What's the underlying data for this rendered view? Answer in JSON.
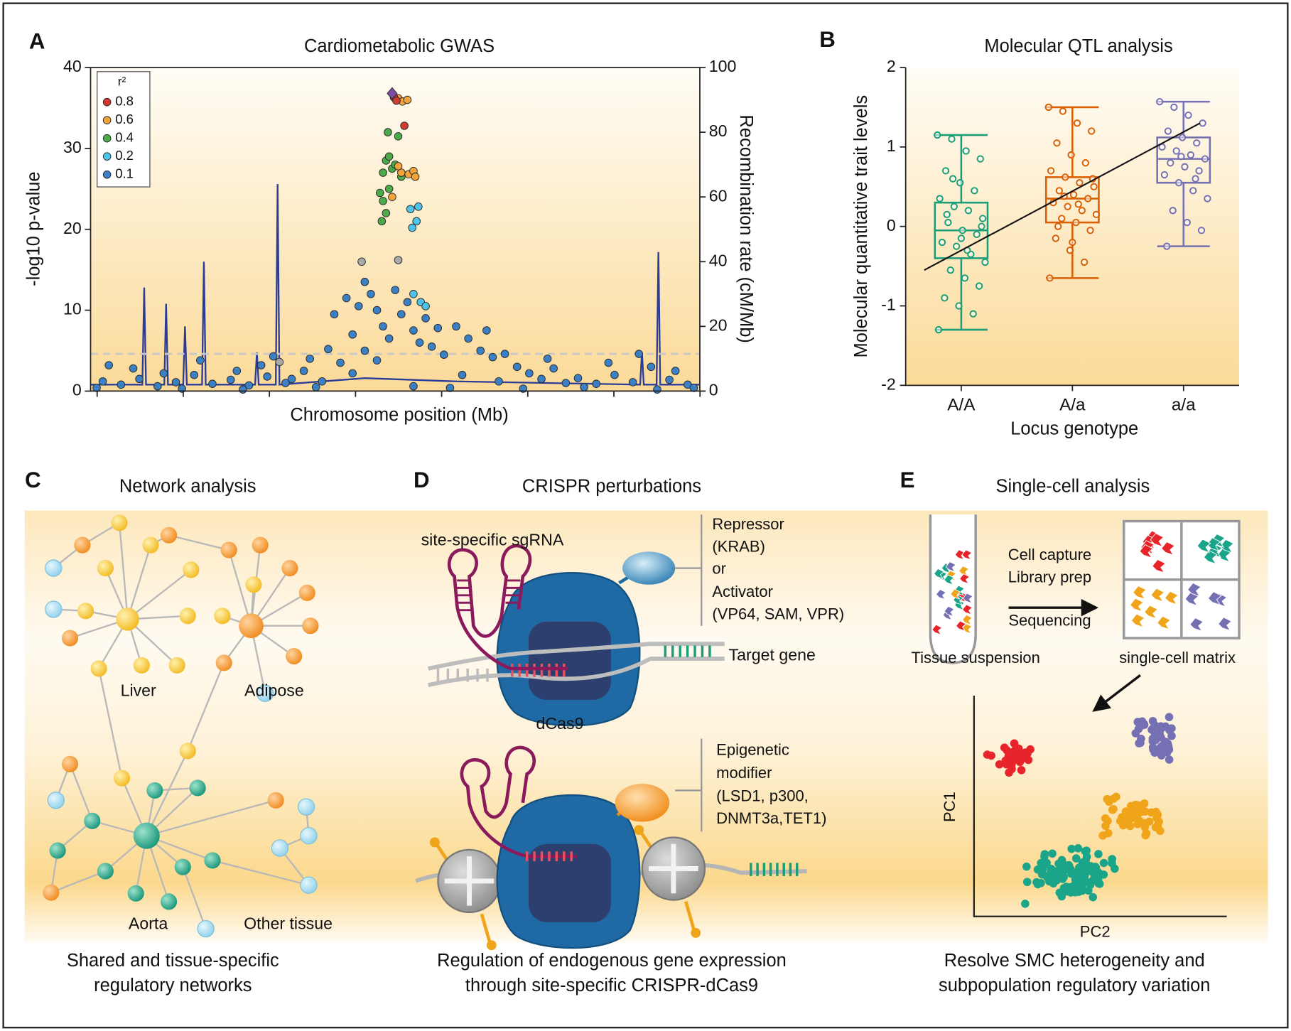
{
  "chart_data": [
    {
      "type": "scatter",
      "panel_label": "A",
      "title": "Cardiometabolic GWAS",
      "x_label": "Chromosome position (Mb)",
      "y_label": "-log10 p-value",
      "y2_label": "Recombination rate (cM/Mb)",
      "xlim": [
        0,
        100
      ],
      "ylim": [
        0,
        40
      ],
      "yticks": [
        0,
        10,
        20,
        30,
        40
      ],
      "y2lim": [
        0,
        100
      ],
      "y2ticks": [
        0,
        20,
        40,
        60,
        80,
        100
      ],
      "threshold": 4.6,
      "legend": "upper left",
      "legend_title": "r²",
      "series": [
        {
          "type": "line",
          "axis": "y2",
          "color": "#2b3c96",
          "x": [
            0,
            8.5,
            8.8,
            9.1,
            12.1,
            12.4,
            12.7,
            15.2,
            15.5,
            15.8,
            18.3,
            18.6,
            18.9,
            27,
            27.3,
            27.6,
            30.4,
            30.7,
            31,
            45,
            60,
            90.2,
            90.5,
            90.8,
            92.9,
            93.2,
            93.5,
            100
          ],
          "values": [
            2,
            2,
            32,
            2,
            2,
            27,
            2,
            2,
            20,
            2,
            2,
            40,
            2,
            2,
            12,
            2,
            2,
            64,
            2,
            4,
            3,
            2,
            12,
            2,
            2,
            43,
            2,
            2
          ]
        },
        {
          "name": "0.1",
          "color": "#3b7fc4",
          "x": [
            2,
            5,
            8,
            11,
            14,
            17,
            20,
            23,
            26,
            29,
            32,
            35,
            38,
            41,
            43,
            45,
            47,
            48,
            49,
            50,
            51,
            52,
            53,
            54,
            55,
            56,
            57,
            58,
            60,
            62,
            64,
            66,
            68,
            70,
            72,
            74,
            76,
            78,
            80,
            83,
            86,
            89,
            92,
            95,
            98,
            40,
            42,
            44,
            46,
            47,
            45,
            43,
            39,
            36,
            33,
            30,
            28,
            24,
            18,
            12,
            7,
            3,
            61,
            65,
            67,
            75,
            85,
            90,
            96,
            1,
            15,
            25,
            37,
            53,
            59,
            71,
            81,
            93,
            99
          ],
          "values": [
            1.2,
            0.8,
            1.5,
            0.6,
            1.1,
            2.0,
            0.9,
            1.4,
            0.7,
            1.8,
            1.0,
            2.5,
            1.2,
            3.5,
            2.2,
            5.0,
            3.8,
            8.0,
            6.5,
            12.5,
            9.5,
            11.0,
            7.5,
            6.0,
            9.0,
            5.5,
            7.8,
            4.5,
            8.0,
            6.5,
            5.0,
            4.2,
            4.6,
            3.0,
            2.2,
            1.5,
            2.8,
            1.0,
            1.6,
            0.9,
            2.0,
            1.1,
            3.0,
            1.4,
            0.8,
            9.5,
            11.5,
            10.5,
            12.0,
            10.0,
            13.5,
            7.0,
            5.2,
            4.0,
            1.5,
            4.3,
            3.2,
            2.5,
            3.8,
            2.2,
            2.8,
            3.2,
            2.0,
            7.5,
            1.2,
            4.0,
            3.5,
            4.6,
            2.5,
            0.4,
            0.3,
            0.2,
            0.5,
            0.6,
            0.4,
            0.3,
            0.5,
            0.2,
            0.4
          ]
        },
        {
          "name": "0.2",
          "color": "#4fc3ea",
          "x": [
            52.5,
            53.5,
            52.8,
            53.8,
            54.2,
            55,
            53
          ],
          "values": [
            22.5,
            21,
            20.2,
            22.8,
            11,
            10.5,
            12
          ]
        },
        {
          "name": "0.4",
          "color": "#4caa4a",
          "x": [
            48.5,
            49,
            49.5,
            48,
            47.5,
            48,
            47.8,
            48.5,
            50,
            49,
            51,
            50.5,
            48.8
          ],
          "values": [
            28.5,
            29,
            27.5,
            27,
            24.5,
            23.5,
            21,
            22,
            28,
            25,
            26.5,
            31.5,
            32
          ]
        },
        {
          "name": "0.6",
          "color": "#f2a33a",
          "x": [
            50.5,
            51.2,
            52,
            51,
            52.2,
            53,
            49.5,
            50.5,
            53.3
          ],
          "values": [
            36.2,
            35.8,
            36,
            27,
            26.8,
            27.2,
            24,
            27.8,
            26.5
          ]
        },
        {
          "name": "0.8",
          "color": "#d13a2f",
          "x": [
            49.8,
            50.2,
            51.5
          ],
          "values": [
            36.3,
            35.9,
            32.8
          ]
        },
        {
          "color": "#a9a9a9",
          "x": [
            44.5,
            50.5,
            31
          ],
          "values": [
            16,
            16.2,
            3.6
          ]
        },
        {
          "color": "#7b4ea3",
          "marker": "diamond",
          "x": [
            49.5
          ],
          "values": [
            36.8
          ]
        }
      ]
    },
    {
      "type": "box",
      "panel_label": "B",
      "title": "Molecular QTL analysis",
      "x_label": "Locus genotype",
      "y_label": "Molecular quantitative trait levels",
      "categories": [
        "A/A",
        "A/a",
        "a/a"
      ],
      "ylim": [
        -2,
        2
      ],
      "yticks": [
        -2,
        -1,
        0,
        1,
        2
      ],
      "trend": [
        -0.55,
        1.3
      ],
      "boxes": [
        {
          "color": "#1a9e77",
          "min": -1.3,
          "q1": -0.4,
          "median": -0.05,
          "q3": 0.3,
          "max": 1.15,
          "points": [
            1.15,
            1.1,
            0.95,
            0.85,
            0.7,
            0.55,
            0.45,
            0.35,
            0.25,
            0.2,
            0.1,
            0.05,
            -0.05,
            -0.1,
            -0.2,
            -0.25,
            -0.35,
            -0.45,
            -0.55,
            -0.65,
            -0.75,
            -0.9,
            -1.0,
            -1.1,
            -1.3,
            0.6,
            -0.3,
            0.0,
            0.15,
            -0.15
          ]
        },
        {
          "color": "#d95f02",
          "min": -0.65,
          "q1": 0.05,
          "median": 0.35,
          "q3": 0.62,
          "max": 1.5,
          "points": [
            1.5,
            1.45,
            1.3,
            1.2,
            1.05,
            0.9,
            0.8,
            0.7,
            0.62,
            0.55,
            0.5,
            0.45,
            0.4,
            0.35,
            0.3,
            0.25,
            0.2,
            0.15,
            0.1,
            0.05,
            -0.05,
            -0.15,
            -0.3,
            -0.45,
            -0.65,
            0.38,
            0.28,
            0.6,
            0.0,
            -0.2
          ]
        },
        {
          "color": "#7570b3",
          "min": -0.25,
          "q1": 0.55,
          "median": 0.85,
          "q3": 1.12,
          "max": 1.57,
          "points": [
            1.57,
            1.5,
            1.4,
            1.3,
            1.2,
            1.12,
            1.05,
            1.0,
            0.95,
            0.9,
            0.85,
            0.8,
            0.75,
            0.7,
            0.65,
            0.55,
            0.45,
            0.35,
            0.2,
            0.05,
            -0.05,
            -0.25,
            0.88,
            0.6
          ]
        }
      ]
    }
  ],
  "network": {
    "panel_label": "C",
    "title": "Network analysis",
    "labels": [
      "Liver",
      "Adipose",
      "Aorta",
      "Other tissue"
    ],
    "caption": [
      "Shared and tissue-specific",
      "regulatory networks"
    ]
  },
  "crispr": {
    "panel_label": "D",
    "title": "CRISPR perturbations",
    "sgrna_label": "site-specific sgRNA",
    "effector_labels": [
      "Repressor",
      "(KRAB)",
      "or",
      "Activator",
      "(VP64, SAM, VPR)"
    ],
    "target_label": "Target gene",
    "cas_label": "dCas9",
    "modifier_labels": [
      "Epigenetic",
      "modifier",
      "(LSD1, p300,",
      "DNMT3a,TET1)"
    ],
    "caption": [
      "Regulation of endogenous gene expression",
      "through site-specific CRISPR-dCas9"
    ]
  },
  "single_cell": {
    "panel_label": "E",
    "title": "Single-cell analysis",
    "steps": [
      "Cell capture",
      "Library prep",
      "Sequencing"
    ],
    "tube_label": "Tissue suspension",
    "matrix_label": "single-cell matrix",
    "y_label": "PC1",
    "x_label": "PC2",
    "caption": [
      "Resolve SMC heterogeneity and",
      "subpopulation regulatory variation"
    ]
  }
}
